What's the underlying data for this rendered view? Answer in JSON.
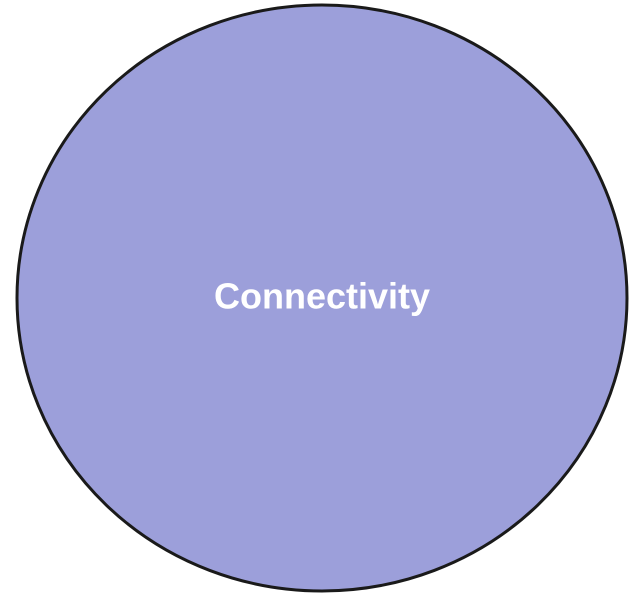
{
  "nodes": [
    {
      "label": "Connectivity"
    }
  ]
}
